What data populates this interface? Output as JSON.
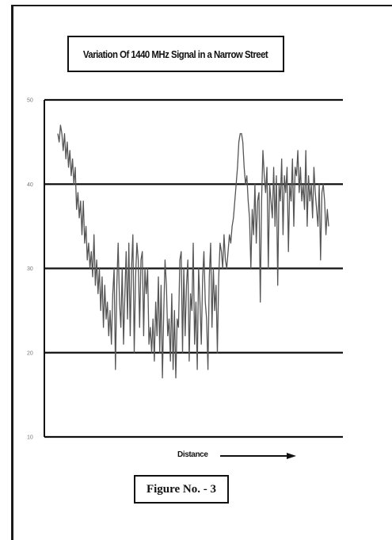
{
  "figure_caption": "Figure No. - 3",
  "chart_data": {
    "type": "line",
    "title": "Variation Of 1440 MHz Signal in a Narrow Street",
    "xlabel": "Distance",
    "ylabel": "",
    "ylim": [
      10,
      50
    ],
    "yticks": [
      10,
      20,
      30,
      40,
      50
    ],
    "ytick_labels": [
      "10",
      "20",
      "30",
      "40",
      "50"
    ],
    "grid": "horizontal",
    "series": [
      {
        "color": "#555555",
        "values": [
          46,
          45,
          47,
          46,
          44,
          46,
          43,
          45,
          42,
          44,
          41,
          43,
          40,
          42,
          37,
          39,
          36,
          38,
          34,
          38,
          33,
          35,
          31,
          33,
          30,
          32,
          29,
          34,
          28,
          31,
          27,
          30,
          25,
          29,
          23,
          28,
          24,
          26,
          22,
          25,
          21,
          27,
          30,
          18,
          28,
          33,
          26,
          23,
          30,
          21,
          27,
          32,
          24,
          33,
          22,
          30,
          34,
          20,
          29,
          33,
          31,
          23,
          31,
          32,
          22,
          30,
          27,
          30,
          21,
          23,
          20,
          24,
          19,
          26,
          22,
          29,
          20,
          28,
          17,
          25,
          31,
          28,
          22,
          24,
          19,
          27,
          18,
          25,
          17,
          24,
          23,
          31,
          32,
          20,
          30,
          22,
          28,
          31,
          19,
          27,
          25,
          33,
          21,
          26,
          18,
          30,
          26,
          21,
          29,
          32,
          26,
          24,
          18,
          29,
          33,
          23,
          30,
          25,
          28,
          20,
          29,
          33,
          32,
          30,
          34,
          31,
          30,
          32,
          34,
          33,
          35,
          36,
          38,
          40,
          42,
          45,
          46,
          46,
          45,
          42,
          40,
          41,
          38,
          36,
          30,
          37,
          34,
          40,
          33,
          38,
          39,
          26,
          38,
          44,
          41,
          39,
          42,
          30,
          40,
          38,
          36,
          42,
          35,
          41,
          28,
          40,
          38,
          43,
          34,
          41,
          39,
          42,
          32,
          40,
          38,
          43,
          35,
          42,
          41,
          44,
          39,
          42,
          38,
          40,
          37,
          44,
          35,
          41,
          38,
          40,
          36,
          42,
          39,
          37,
          35,
          40,
          31,
          39,
          40,
          38,
          34,
          37,
          35
        ]
      }
    ]
  }
}
